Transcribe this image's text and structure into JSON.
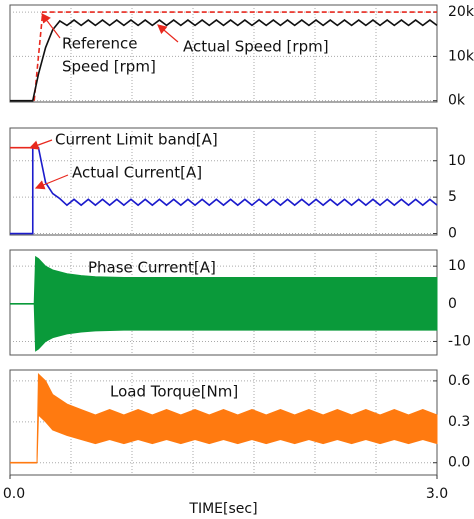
{
  "chart_data": [
    {
      "type": "line",
      "xlim": [
        0,
        3
      ],
      "ylim": [
        -300,
        21600
      ],
      "yticks": [
        {
          "value": 0,
          "label": "0k"
        },
        {
          "value": 10000,
          "label": "10k"
        },
        {
          "value": 20000,
          "label": "20k"
        }
      ],
      "annotations": [
        [
          "Reference",
          "Speed [rpm]"
        ],
        [
          "Actual Speed [rpm]"
        ]
      ],
      "series": [
        {
          "color": "#e8281e",
          "dashed": true,
          "x": [
            0.17,
            0.23,
            3.0
          ],
          "values": [
            0,
            20000,
            20000
          ]
        },
        {
          "color": "#111111",
          "x": [
            0,
            0.16,
            0.2,
            0.25,
            0.3,
            0.35,
            0.4,
            0.45,
            0.5,
            0.55,
            0.6,
            0.65,
            0.7,
            0.75,
            0.8,
            0.85,
            0.9,
            0.95,
            1.0,
            1.05,
            1.1,
            1.15,
            1.2,
            1.25,
            1.3,
            1.35,
            1.4,
            1.45,
            1.5,
            1.55,
            1.6,
            1.65,
            1.7,
            1.75,
            1.8,
            1.85,
            1.9,
            1.95,
            2.0,
            2.05,
            2.1,
            2.15,
            2.2,
            2.25,
            2.3,
            2.35,
            2.4,
            2.45,
            2.5,
            2.55,
            2.6,
            2.65,
            2.7,
            2.75,
            2.8,
            2.85,
            2.9,
            2.95,
            3.0
          ],
          "values": [
            0,
            0,
            6000,
            12000,
            16000,
            18000,
            17000,
            18200,
            17000,
            18200,
            17000,
            18200,
            17000,
            18200,
            17000,
            18200,
            17000,
            18200,
            17000,
            18200,
            17000,
            18200,
            17000,
            18200,
            17000,
            18200,
            17000,
            18200,
            17000,
            18200,
            17000,
            18200,
            17000,
            18200,
            17000,
            18200,
            17000,
            18200,
            17000,
            18200,
            17000,
            18200,
            17000,
            18200,
            17000,
            18200,
            17000,
            18200,
            17000,
            18200,
            17000,
            18200,
            17000,
            18200,
            17000,
            18200,
            17000,
            18200,
            17000
          ]
        }
      ]
    },
    {
      "type": "line",
      "xlim": [
        0,
        3
      ],
      "ylim": [
        -0.2,
        14.5
      ],
      "yticks": [
        0,
        5,
        10
      ],
      "annotations": [
        [
          "Current Limit band[A]"
        ],
        [
          "Actual Current[A]"
        ]
      ],
      "series": [
        {
          "color": "#e8281e",
          "x": [
            0,
            0.18
          ],
          "values": [
            11.8,
            11.8
          ]
        },
        {
          "color": "#1c1ccc",
          "x": [
            0,
            0.16,
            0.16,
            0.2,
            0.25,
            0.3,
            0.35,
            0.4,
            0.45,
            0.5,
            0.55,
            0.6,
            0.65,
            0.7,
            0.75,
            0.8,
            0.85,
            0.9,
            0.95,
            1.0,
            1.05,
            1.1,
            1.15,
            1.2,
            1.25,
            1.3,
            1.35,
            1.4,
            1.45,
            1.5,
            1.55,
            1.6,
            1.65,
            1.7,
            1.75,
            1.8,
            1.85,
            1.9,
            1.95,
            2.0,
            2.05,
            2.1,
            2.15,
            2.2,
            2.25,
            2.3,
            2.35,
            2.4,
            2.45,
            2.5,
            2.55,
            2.6,
            2.65,
            2.7,
            2.75,
            2.8,
            2.85,
            2.9,
            2.95,
            3.0
          ],
          "values": [
            0,
            0,
            11.8,
            11.8,
            7,
            5.5,
            4.8,
            3.9,
            4.7,
            3.9,
            4.7,
            3.9,
            4.7,
            3.9,
            4.7,
            3.9,
            4.7,
            3.9,
            4.7,
            3.9,
            4.7,
            3.9,
            4.7,
            3.9,
            4.7,
            3.9,
            4.7,
            3.9,
            4.7,
            3.9,
            4.7,
            3.9,
            4.7,
            3.9,
            4.7,
            3.9,
            4.7,
            3.9,
            4.7,
            3.9,
            4.7,
            3.9,
            4.7,
            3.9,
            4.7,
            3.9,
            4.7,
            3.9,
            4.7,
            3.9,
            4.7,
            3.9,
            4.7,
            3.9,
            4.7,
            3.9,
            4.7,
            3.9,
            4.7,
            3.9
          ]
        }
      ]
    },
    {
      "type": "line",
      "xlim": [
        0,
        3
      ],
      "ylim": [
        -13.6,
        14.3
      ],
      "yticks": [
        -10,
        0,
        10
      ],
      "annotations": [
        [
          "Phase Current[A]"
        ]
      ],
      "series": [
        {
          "color": "#0a9a3a",
          "x": [
            0,
            0.17
          ],
          "values": [
            0,
            0
          ]
        },
        {
          "color": "#0a9a3a",
          "band": true,
          "x": [
            0.17,
            0.18,
            0.2,
            0.25,
            0.3,
            0.4,
            0.5,
            0.6,
            0.8,
            1.0,
            3.0
          ],
          "values": [
            0,
            12.5,
            12,
            10,
            9,
            8,
            7.5,
            7.2,
            7,
            7,
            7
          ],
          "low": [
            0,
            -12.5,
            -12,
            -10,
            -9,
            -8,
            -7.5,
            -7.2,
            -7,
            -7,
            -7
          ]
        }
      ]
    },
    {
      "type": "line",
      "xlim": [
        0,
        3
      ],
      "ylim": [
        -0.09,
        0.68
      ],
      "yticks": [
        {
          "value": 0,
          "label": "0.0"
        },
        0.3,
        0.6
      ],
      "xticks": [
        {
          "value": 0,
          "label": "0.0"
        },
        {
          "value": 3,
          "label": "3.0"
        }
      ],
      "xlabel": "TIME[sec]",
      "annotations": [
        [
          "Load Torque[Nm]"
        ]
      ],
      "series": [
        {
          "color": "#ff7a10",
          "x": [
            0,
            0.19
          ],
          "values": [
            0,
            0
          ]
        },
        {
          "color": "#ff7a10",
          "band": true,
          "x": [
            0.19,
            0.2,
            0.25,
            0.3,
            0.4,
            0.5,
            0.6,
            0.7,
            0.8,
            0.9,
            1.0,
            1.1,
            1.2,
            1.3,
            1.4,
            1.5,
            1.6,
            1.7,
            1.8,
            1.9,
            2.0,
            2.1,
            2.2,
            2.3,
            2.4,
            2.5,
            2.6,
            2.7,
            2.8,
            2.9,
            3.0
          ],
          "values": [
            0.05,
            0.65,
            0.6,
            0.5,
            0.43,
            0.39,
            0.35,
            0.39,
            0.35,
            0.39,
            0.35,
            0.39,
            0.35,
            0.39,
            0.35,
            0.39,
            0.35,
            0.39,
            0.35,
            0.39,
            0.35,
            0.39,
            0.35,
            0.39,
            0.35,
            0.39,
            0.35,
            0.39,
            0.35,
            0.39,
            0.35
          ],
          "low": [
            0,
            0.35,
            0.3,
            0.24,
            0.2,
            0.17,
            0.14,
            0.17,
            0.14,
            0.17,
            0.14,
            0.17,
            0.14,
            0.17,
            0.14,
            0.17,
            0.14,
            0.17,
            0.14,
            0.17,
            0.14,
            0.17,
            0.14,
            0.17,
            0.14,
            0.17,
            0.14,
            0.17,
            0.14,
            0.17,
            0.14
          ]
        }
      ]
    }
  ]
}
